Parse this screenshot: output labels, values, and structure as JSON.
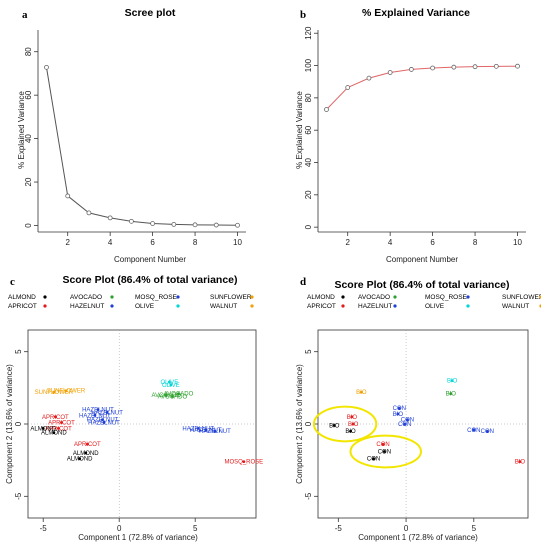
{
  "panels": [
    "a",
    "b",
    "c",
    "d"
  ],
  "colors": {
    "ALMOND": "#000000",
    "APRICOT": "#e41a1c",
    "AVOCADO": "#2ca02c",
    "HAZELNUT": "#1f3fd6",
    "MOSQ_ROSE": "#1f3fd6",
    "OLIVE": "#00d5d5",
    "SUNFLOWER": "#f0a000",
    "WALNUT": "#f0a000",
    "RIG": "#e41a1c"
  },
  "chart_data": [
    {
      "panel": "a",
      "type": "line",
      "title": "Scree plot",
      "xlabel": "Component Number",
      "ylabel": "% Explained Variance",
      "x": [
        1,
        2,
        3,
        4,
        5,
        6,
        7,
        8,
        9,
        10
      ],
      "series": [
        {
          "values": [
            72.8,
            13.6,
            5.8,
            3.5,
            1.9,
            0.9,
            0.5,
            0.3,
            0.2,
            0.1
          ]
        }
      ],
      "xlim": [
        0.6,
        10.4
      ],
      "ylim": [
        -3,
        90
      ],
      "xticks": [
        2,
        4,
        6,
        8,
        10
      ],
      "yticks": [
        0,
        20,
        40,
        60,
        80
      ]
    },
    {
      "panel": "b",
      "type": "line",
      "title": "% Explained Variance",
      "xlabel": "Component Number",
      "ylabel": "% Explained Variance",
      "x": [
        1,
        2,
        3,
        4,
        5,
        6,
        7,
        8,
        9,
        10
      ],
      "series": [
        {
          "values": [
            72.8,
            86.4,
            92.2,
            95.7,
            97.6,
            98.5,
            99.0,
            99.3,
            99.5,
            99.6
          ]
        }
      ],
      "xlim": [
        0.6,
        10.4
      ],
      "ylim": [
        -3,
        122
      ],
      "xticks": [
        2,
        4,
        6,
        8,
        10
      ],
      "yticks": [
        0,
        20,
        40,
        60,
        80,
        100,
        120
      ]
    },
    {
      "panel": "c",
      "type": "scatter",
      "title": "Score Plot (86.4% of total variance)",
      "xlabel": "Component 1 (72.8% of variance)",
      "ylabel": "Component 2 (13.6% of variance)",
      "xlim": [
        -6,
        9
      ],
      "ylim": [
        -6.5,
        6.5
      ],
      "xticks": [
        -5,
        0,
        5
      ],
      "yticks": [
        -5,
        0,
        5
      ],
      "legend": [
        {
          "name": "ALMOND"
        },
        {
          "name": "AVOCADO"
        },
        {
          "name": "MOSQ_ROSE"
        },
        {
          "name": "SUNFLOWER"
        },
        {
          "name": "APRICOT"
        },
        {
          "name": "HAZELNUT"
        },
        {
          "name": "OLIVE"
        },
        {
          "name": "WALNUT"
        }
      ],
      "points": [
        {
          "label": "SUNFLOWER",
          "x": -4.3,
          "y": 2.2,
          "group": "SUNFLOWER"
        },
        {
          "label": "SUNFLOWER",
          "x": -3.5,
          "y": 2.3,
          "group": "SUNFLOWER"
        },
        {
          "label": "OLIVE",
          "x": 3.3,
          "y": 2.9,
          "group": "OLIVE"
        },
        {
          "label": "OLIVE",
          "x": 3.4,
          "y": 2.7,
          "group": "OLIVE"
        },
        {
          "label": "AVOCADO",
          "x": 3.1,
          "y": 2.0,
          "group": "AVOCADO"
        },
        {
          "label": "AVOCADO",
          "x": 3.5,
          "y": 1.9,
          "group": "AVOCADO"
        },
        {
          "label": "AVOCADO",
          "x": 3.9,
          "y": 2.1,
          "group": "AVOCADO"
        },
        {
          "label": "HAZELNUT",
          "x": -1.4,
          "y": 1.0,
          "group": "HAZELNUT"
        },
        {
          "label": "HAZELNUT",
          "x": -0.8,
          "y": 0.8,
          "group": "HAZELNUT"
        },
        {
          "label": "HAZELNUT",
          "x": -1.1,
          "y": 0.3,
          "group": "HAZELNUT"
        },
        {
          "label": "HAZELNUT",
          "x": -1.6,
          "y": 0.6,
          "group": "HAZELNUT"
        },
        {
          "label": "HAZELNUT",
          "x": -1.0,
          "y": 0.1,
          "group": "HAZELNUT"
        },
        {
          "label": "APRICOT",
          "x": -4.2,
          "y": 0.5,
          "group": "APRICOT"
        },
        {
          "label": "APRICOT",
          "x": -3.8,
          "y": 0.1,
          "group": "APRICOT"
        },
        {
          "label": "APRICOT",
          "x": -4.0,
          "y": -0.3,
          "group": "APRICOT"
        },
        {
          "label": "APRICOT",
          "x": -2.1,
          "y": -1.4,
          "group": "APRICOT"
        },
        {
          "label": "ALMOND",
          "x": -5.0,
          "y": -0.3,
          "group": "ALMOND"
        },
        {
          "label": "ALMOND",
          "x": -4.3,
          "y": -0.6,
          "group": "ALMOND"
        },
        {
          "label": "ALMOND",
          "x": -2.2,
          "y": -2.0,
          "group": "ALMOND"
        },
        {
          "label": "ALMOND",
          "x": -2.6,
          "y": -2.4,
          "group": "ALMOND"
        },
        {
          "label": "HAZELNUT",
          "x": 5.2,
          "y": -0.3,
          "group": "HAZELNUT"
        },
        {
          "label": "HAZELNUT",
          "x": 5.7,
          "y": -0.4,
          "group": "HAZELNUT"
        },
        {
          "label": "HAZELNUT",
          "x": 6.3,
          "y": -0.5,
          "group": "HAZELNUT"
        },
        {
          "label": "MOSQ_ROSE",
          "x": 8.2,
          "y": -2.6,
          "group": "APRICOT"
        }
      ]
    },
    {
      "panel": "d",
      "type": "scatter",
      "title": "Score Plot (86.4% of total variance)",
      "xlabel": "Component 1 (72.8% of variance)",
      "ylabel": "Component 2 (13.6% of variance)",
      "xlim": [
        -6.5,
        9
      ],
      "ylim": [
        -6.5,
        6.5
      ],
      "xticks": [
        -5,
        0,
        5
      ],
      "yticks": [
        -5,
        0,
        5
      ],
      "legend": [
        {
          "name": "ALMOND"
        },
        {
          "name": "AVOCADO"
        },
        {
          "name": "MOSQ_ROSE"
        },
        {
          "name": "SUNFLOWER"
        },
        {
          "name": "APRICOT"
        },
        {
          "name": "HAZELNUT"
        },
        {
          "name": "OLIVE"
        },
        {
          "name": "WALNUT"
        }
      ],
      "points": [
        {
          "label": "BIO",
          "x": -3.3,
          "y": 2.2,
          "group": "SUNFLOWER"
        },
        {
          "label": "BIO",
          "x": 3.4,
          "y": 3.0,
          "group": "OLIVE"
        },
        {
          "label": "BIO",
          "x": 3.3,
          "y": 2.1,
          "group": "AVOCADO"
        },
        {
          "label": "BIO",
          "x": -5.3,
          "y": -0.1,
          "group": "ALMOND"
        },
        {
          "label": "BIO",
          "x": -4.0,
          "y": 0.5,
          "group": "APRICOT"
        },
        {
          "label": "BIO",
          "x": -3.9,
          "y": 0.0,
          "group": "APRICOT"
        },
        {
          "label": "BIO",
          "x": -4.1,
          "y": -0.5,
          "group": "ALMOND"
        },
        {
          "label": "CON",
          "x": -0.5,
          "y": 1.1,
          "group": "HAZELNUT"
        },
        {
          "label": "BIO",
          "x": -0.6,
          "y": 0.7,
          "group": "HAZELNUT"
        },
        {
          "label": "CON",
          "x": 0.1,
          "y": 0.3,
          "group": "HAZELNUT"
        },
        {
          "label": "CON",
          "x": -0.1,
          "y": 0.0,
          "group": "HAZELNUT"
        },
        {
          "label": "CON",
          "x": -1.7,
          "y": -1.4,
          "group": "APRICOT"
        },
        {
          "label": "CON",
          "x": -1.6,
          "y": -1.9,
          "group": "ALMOND"
        },
        {
          "label": "CON",
          "x": -2.4,
          "y": -2.4,
          "group": "ALMOND"
        },
        {
          "label": "CON",
          "x": 5.0,
          "y": -0.4,
          "group": "HAZELNUT"
        },
        {
          "label": "CON",
          "x": 6.0,
          "y": -0.5,
          "group": "HAZELNUT"
        },
        {
          "label": "BIO",
          "x": 8.4,
          "y": -2.6,
          "group": "APRICOT"
        }
      ],
      "highlights": [
        {
          "cx": -4.5,
          "cy": 0.0,
          "rx": 2.3,
          "ry": 1.2
        },
        {
          "cx": -1.5,
          "cy": -1.9,
          "rx": 2.6,
          "ry": 1.1
        }
      ]
    }
  ]
}
